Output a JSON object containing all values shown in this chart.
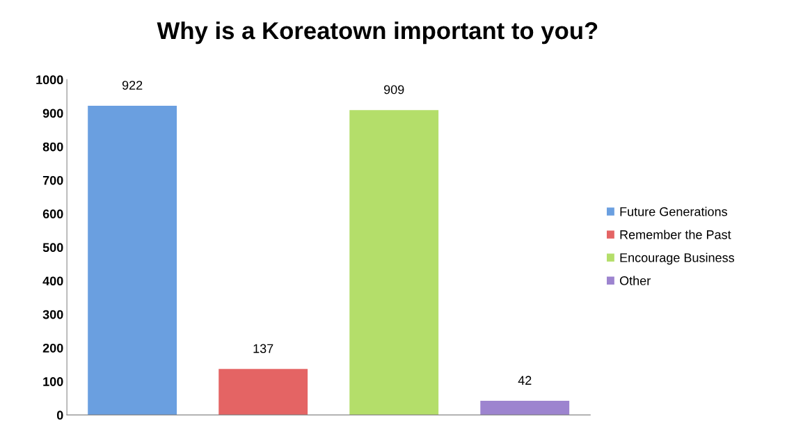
{
  "chart_data": {
    "type": "bar",
    "title": "Why is a Koreatown important to you?",
    "categories": [
      null,
      null,
      null,
      null
    ],
    "series": [
      {
        "name": "Future Generations",
        "color": "#6a9fe0",
        "values": [
          922,
          null,
          null,
          null
        ]
      },
      {
        "name": "Remember the Past",
        "color": "#e46464",
        "values": [
          null,
          137,
          null,
          null
        ]
      },
      {
        "name": "Encourage Business",
        "color": "#b4de6a",
        "values": [
          null,
          null,
          909,
          null
        ]
      },
      {
        "name": "Other",
        "color": "#9d84cf",
        "values": [
          null,
          null,
          null,
          42
        ]
      }
    ],
    "ylim": [
      0,
      1000
    ],
    "yticks": [
      0,
      100,
      200,
      300,
      400,
      500,
      600,
      700,
      800,
      900,
      1000
    ],
    "data_labels": true,
    "grid": false,
    "legend": "right"
  }
}
